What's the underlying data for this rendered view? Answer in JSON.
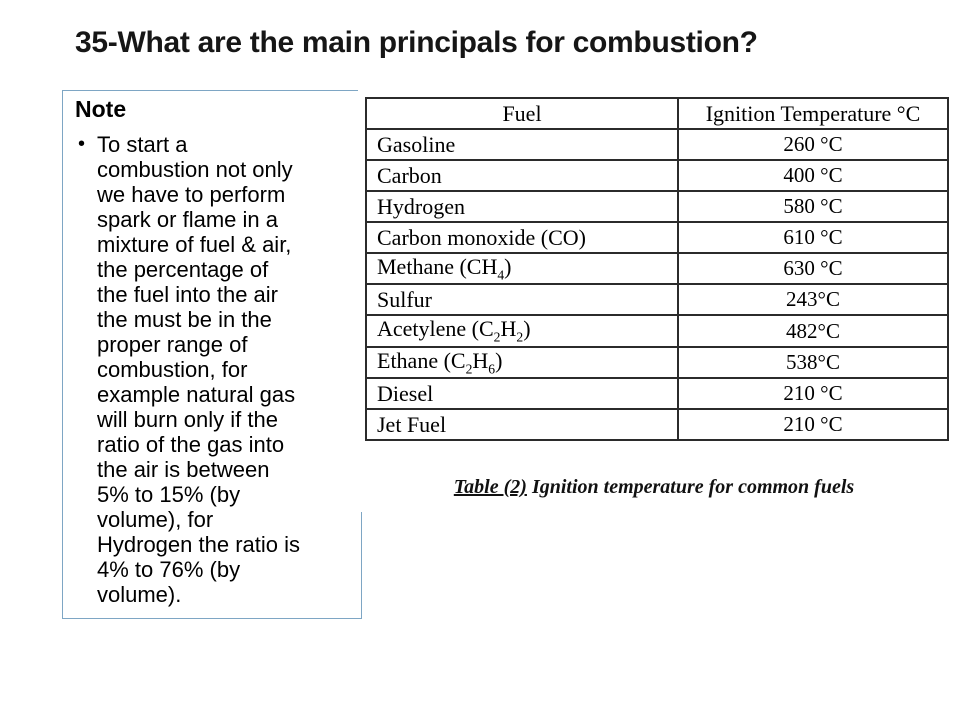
{
  "title": "35-What are the main principals for combustion?",
  "note": {
    "heading": "Note",
    "bullet_glyph": "•",
    "text": "To start a combustion not only we have to perform spark or flame in a mixture of fuel & air, the percentage of the fuel into the air the must be in the proper range of combustion, for example natural gas will burn only if the ratio of the gas into the air is between 5% to 15% (by volume), for Hydrogen the ratio is 4% to 76% (by volume).",
    "lines": "To start a\ncombustion not only\nwe have to perform\nspark or flame in a\nmixture of fuel & air,\nthe percentage of\nthe fuel into the air\nthe must be in the\nproper range of\ncombustion, for\nexample natural gas\nwill burn only if the\nratio of the gas into\nthe air is between\n5% to 15% (by\nvolume), for\nHydrogen the ratio is\n4% to 76% (by\nvolume)."
  },
  "table": {
    "headers": [
      "Fuel",
      "Ignition Temperature °C"
    ],
    "rows": [
      {
        "fuel": "Gasoline",
        "temp": "260 °C"
      },
      {
        "fuel": "Carbon",
        "temp": "400 °C"
      },
      {
        "fuel": "Hydrogen",
        "temp": "580 °C"
      },
      {
        "fuel": "Carbon monoxide (CO)",
        "temp": "610 °C"
      },
      {
        "fuel": "Methane (CH_4_)",
        "temp": "630 °C"
      },
      {
        "fuel": "Sulfur",
        "temp": "243°C"
      },
      {
        "fuel": "Acetylene (C_2_H_2_)",
        "temp": "482°C"
      },
      {
        "fuel": "Ethane (C_2_H_6_)",
        "temp": "538°C"
      },
      {
        "fuel": "Diesel",
        "temp": "210 °C"
      },
      {
        "fuel": "Jet Fuel",
        "temp": "210 °C"
      }
    ],
    "caption_label": "Table (2)",
    "caption_rest": " Ignition temperature for common fuels"
  },
  "chart_data": {
    "type": "table",
    "title": "Table (2) Ignition temperature for common fuels",
    "columns": [
      "Fuel",
      "Ignition Temperature °C"
    ],
    "categories": [
      "Gasoline",
      "Carbon",
      "Hydrogen",
      "Carbon monoxide (CO)",
      "Methane (CH4)",
      "Sulfur",
      "Acetylene (C2H2)",
      "Ethane (C2H6)",
      "Diesel",
      "Jet Fuel"
    ],
    "values": [
      260,
      400,
      580,
      610,
      630,
      243,
      482,
      538,
      210,
      210
    ]
  },
  "colors": {
    "background": "#ffffff",
    "note_border": "#7ea6c4",
    "table_border": "#2b2b2b",
    "text": "#000000"
  }
}
